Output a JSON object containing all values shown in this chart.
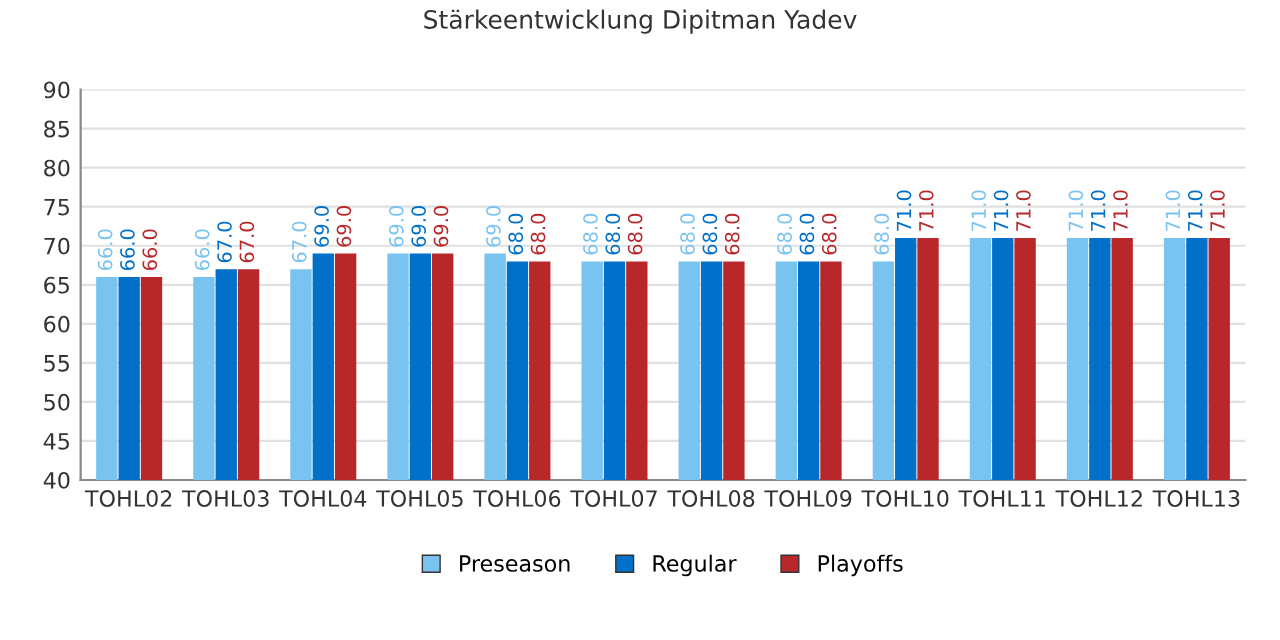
{
  "chart_data": {
    "type": "bar",
    "title": "Stärkeentwicklung Dipitman Yadev",
    "categories": [
      "TOHL02",
      "TOHL03",
      "TOHL04",
      "TOHL05",
      "TOHL06",
      "TOHL07",
      "TOHL08",
      "TOHL09",
      "TOHL10",
      "TOHL11",
      "TOHL12",
      "TOHL13"
    ],
    "series": [
      {
        "name": "Preseason",
        "color": "#78c3f0",
        "values": [
          66,
          66,
          67,
          69,
          69,
          68,
          68,
          68,
          68,
          71,
          71,
          71
        ],
        "value_labels": [
          "66.0",
          "66.0",
          "67.0",
          "69.0",
          "69.0",
          "68.0",
          "68.0",
          "68.0",
          "68.0",
          "71.0",
          "71.0",
          "71.0"
        ]
      },
      {
        "name": "Regular",
        "color": "#0070c8",
        "values": [
          66,
          67,
          69,
          69,
          68,
          68,
          68,
          68,
          71,
          71,
          71,
          71
        ],
        "value_labels": [
          "66.0",
          "67.0",
          "69.0",
          "69.0",
          "68.0",
          "68.0",
          "68.0",
          "68.0",
          "71.0",
          "71.0",
          "71.0",
          "71.0"
        ]
      },
      {
        "name": "Playoffs",
        "color": "#b8282a",
        "values": [
          66,
          67,
          69,
          69,
          68,
          68,
          68,
          68,
          71,
          71,
          71,
          71
        ],
        "value_labels": [
          "66.0",
          "67.0",
          "69.0",
          "69.0",
          "68.0",
          "68.0",
          "68.0",
          "68.0",
          "71.0",
          "71.0",
          "71.0",
          "71.0"
        ]
      }
    ],
    "ylim": [
      40,
      90
    ],
    "yticks": [
      40,
      45,
      50,
      55,
      60,
      65,
      70,
      75,
      80,
      85,
      90
    ],
    "grid": "y",
    "legend": "bottom"
  }
}
